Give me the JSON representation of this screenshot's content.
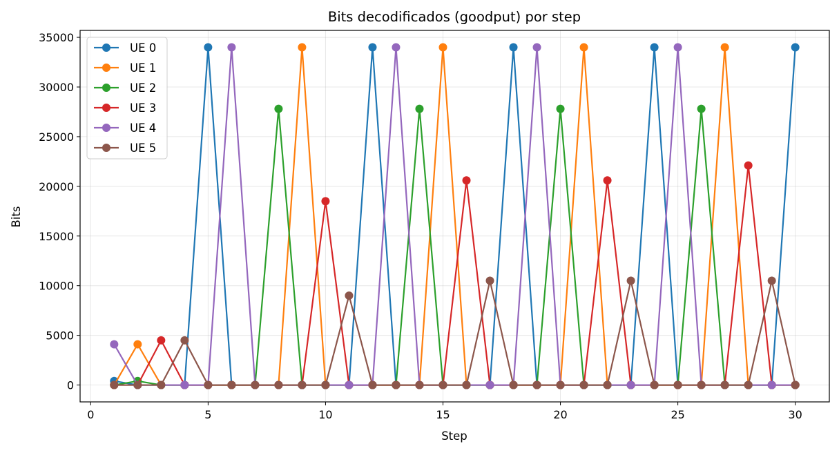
{
  "chart_data": {
    "type": "line",
    "title": "Bits decodificados (goodput) por step",
    "xlabel": "Step",
    "ylabel": "Bits",
    "xlim": [
      -0.45,
      31.45
    ],
    "ylim": [
      -1700,
      35700
    ],
    "xticks": [
      0,
      5,
      10,
      15,
      20,
      25,
      30
    ],
    "yticks": [
      0,
      5000,
      10000,
      15000,
      20000,
      25000,
      30000,
      35000
    ],
    "grid": true,
    "legend_position": "top-left",
    "x": [
      1,
      2,
      3,
      4,
      5,
      6,
      7,
      8,
      9,
      10,
      11,
      12,
      13,
      14,
      15,
      16,
      17,
      18,
      19,
      20,
      21,
      22,
      23,
      24,
      25,
      26,
      27,
      28,
      29,
      30
    ],
    "series": [
      {
        "name": "UE 0",
        "color": "#1f77b4",
        "values": [
          400,
          0,
          0,
          0,
          34000,
          0,
          0,
          0,
          0,
          0,
          0,
          34000,
          0,
          0,
          0,
          0,
          0,
          34000,
          0,
          0,
          0,
          0,
          0,
          34000,
          0,
          0,
          0,
          0,
          0,
          34000
        ]
      },
      {
        "name": "UE 1",
        "color": "#ff7f0e",
        "values": [
          0,
          4100,
          0,
          0,
          0,
          0,
          0,
          0,
          34000,
          0,
          0,
          0,
          0,
          0,
          34000,
          0,
          0,
          0,
          0,
          0,
          34000,
          0,
          0,
          0,
          0,
          0,
          34000,
          0,
          0,
          0
        ]
      },
      {
        "name": "UE 2",
        "color": "#2ca02c",
        "values": [
          0,
          400,
          0,
          0,
          0,
          0,
          0,
          27800,
          0,
          0,
          0,
          0,
          0,
          27800,
          0,
          0,
          0,
          0,
          0,
          27800,
          0,
          0,
          0,
          0,
          0,
          27800,
          0,
          0,
          0,
          0
        ]
      },
      {
        "name": "UE 3",
        "color": "#d62728",
        "values": [
          0,
          0,
          4500,
          0,
          0,
          0,
          0,
          0,
          0,
          18500,
          0,
          0,
          0,
          0,
          0,
          20600,
          0,
          0,
          0,
          0,
          0,
          20600,
          0,
          0,
          0,
          0,
          0,
          22100,
          0,
          0
        ]
      },
      {
        "name": "UE 4",
        "color": "#9467bd",
        "values": [
          4100,
          0,
          0,
          0,
          0,
          34000,
          0,
          0,
          0,
          0,
          0,
          0,
          34000,
          0,
          0,
          0,
          0,
          0,
          34000,
          0,
          0,
          0,
          0,
          0,
          34000,
          0,
          0,
          0,
          0,
          0
        ]
      },
      {
        "name": "UE 5",
        "color": "#8c564b",
        "values": [
          0,
          0,
          0,
          4500,
          0,
          0,
          0,
          0,
          0,
          0,
          9000,
          0,
          0,
          0,
          0,
          0,
          10500,
          0,
          0,
          0,
          0,
          0,
          10500,
          0,
          0,
          0,
          0,
          0,
          10500,
          0
        ]
      }
    ]
  }
}
